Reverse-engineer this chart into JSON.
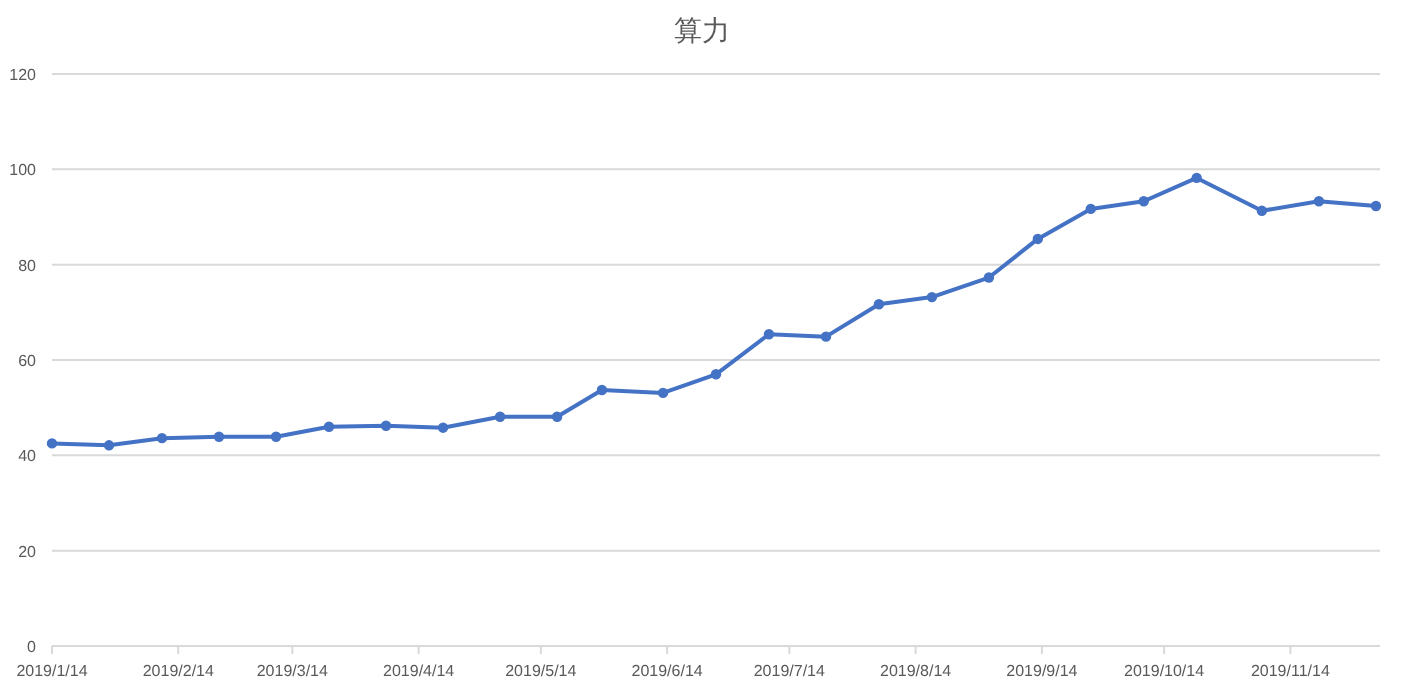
{
  "chart_data": {
    "type": "line",
    "title": "算力",
    "x": [
      "2019-01-14",
      "2019-01-28",
      "2019-02-10",
      "2019-02-24",
      "2019-03-10",
      "2019-03-23",
      "2019-04-06",
      "2019-04-20",
      "2019-05-04",
      "2019-05-18",
      "2019-05-29",
      "2019-06-13",
      "2019-06-26",
      "2019-07-09",
      "2019-07-23",
      "2019-08-05",
      "2019-08-18",
      "2019-09-01",
      "2019-09-13",
      "2019-09-26",
      "2019-10-09",
      "2019-10-22",
      "2019-11-07",
      "2019-11-21",
      "2019-12-05"
    ],
    "series": [
      {
        "color": "#4472c4",
        "values": [
          42.5,
          42.1,
          43.6,
          43.9,
          43.9,
          46.0,
          46.2,
          45.8,
          48.1,
          48.1,
          53.7,
          53.1,
          57.0,
          65.4,
          64.9,
          71.7,
          73.2,
          77.3,
          85.4,
          91.7,
          93.3,
          98.2,
          91.3,
          93.3,
          92.3
        ]
      }
    ],
    "xlim": [
      "2019-01-14",
      "2019-12-06"
    ],
    "xticks": [
      {
        "value": "2019-01-14",
        "label": "2019/1/14"
      },
      {
        "value": "2019-02-14",
        "label": "2019/2/14"
      },
      {
        "value": "2019-03-14",
        "label": "2019/3/14"
      },
      {
        "value": "2019-04-14",
        "label": "2019/4/14"
      },
      {
        "value": "2019-05-14",
        "label": "2019/5/14"
      },
      {
        "value": "2019-06-14",
        "label": "2019/6/14"
      },
      {
        "value": "2019-07-14",
        "label": "2019/7/14"
      },
      {
        "value": "2019-08-14",
        "label": "2019/8/14"
      },
      {
        "value": "2019-09-14",
        "label": "2019/9/14"
      },
      {
        "value": "2019-10-14",
        "label": "2019/10/14"
      },
      {
        "value": "2019-11-14",
        "label": "2019/11/14"
      }
    ],
    "ylim": [
      0,
      120
    ],
    "yticks": [
      0,
      20,
      40,
      60,
      80,
      100,
      120
    ],
    "grid": "y",
    "marker": "circle",
    "line_style": "solid"
  }
}
